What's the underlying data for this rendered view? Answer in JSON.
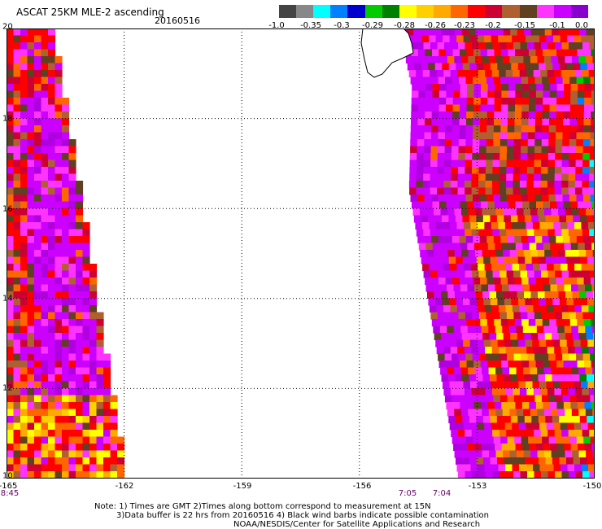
{
  "header": {
    "title": "ASCAT 25KM MLE-2 ascending",
    "date": "20160516"
  },
  "colorbar": {
    "colors": [
      "#444444",
      "#888888",
      "#00ffff",
      "#0080ff",
      "#0000cc",
      "#00cc00",
      "#008000",
      "#ffff00",
      "#ffd000",
      "#ffaa00",
      "#ff6600",
      "#ff0000",
      "#cc0033",
      "#b06030",
      "#604020",
      "#ff33ff",
      "#cc00ff",
      "#8800cc"
    ],
    "tick_labels": [
      "-1.0",
      "-0.35",
      "-0.3",
      "-0.29",
      "-0.28",
      "-0.26",
      "-0.23",
      "-0.2",
      "-0.15",
      "-0.1",
      "0.0"
    ]
  },
  "map": {
    "lat_labels": [
      "20",
      "18",
      "16",
      "14",
      "12",
      "10"
    ],
    "lon_labels": [
      "-165",
      "-162",
      "-159",
      "-156",
      "-153",
      "-150"
    ],
    "time_labels": [
      "8:45",
      "7:05",
      "7:04"
    ],
    "grid": "dotted",
    "lon_range": [
      -165,
      -150
    ],
    "lat_range": [
      10,
      20
    ]
  },
  "notes": {
    "line1": "Note: 1) Times are GMT 2)Times along bottom correspond to measurement at 15N",
    "line2": "3)Data buffer is 22 hrs from 20160516 4) Black wind barbs indicate possible contamination",
    "line3": "NOAA/NESDIS/Center for Satellite Applications and Research"
  }
}
